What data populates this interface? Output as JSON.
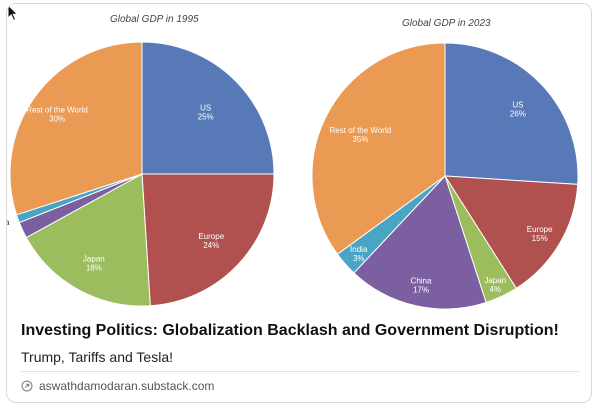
{
  "card": {
    "title": "Investing Politics: Globalization Backlash and Government Disruption!",
    "subtitle": "Trump, Tariffs and Tesla!",
    "source_domain": "aswathdamodaran.substack.com",
    "source_icon": "link-icon"
  },
  "chart_data": [
    {
      "type": "pie",
      "title": "Global GDP in 1995",
      "slices": [
        {
          "label": "US",
          "value": 25,
          "value_label": "25%",
          "color": "#5779b7"
        },
        {
          "label": "Europe",
          "value": 24,
          "value_label": "24%",
          "color": "#b0514f"
        },
        {
          "label": "Japan",
          "value": 18,
          "value_label": "18%",
          "color": "#9bbd5e"
        },
        {
          "label": "China",
          "value": 2,
          "value_label": "",
          "color": "#7b5fa0"
        },
        {
          "label": "India",
          "value": 1,
          "value_label": "",
          "color": "#4aa5c5"
        },
        {
          "label": "Rest of the World",
          "value": 30,
          "value_label": "30%",
          "color": "#ea9a52"
        }
      ],
      "visible_labels": [
        "US",
        "Europe",
        "Japan",
        "Rest of the World",
        "a"
      ]
    },
    {
      "type": "pie",
      "title": "Global GDP in 2023",
      "slices": [
        {
          "label": "US",
          "value": 26,
          "value_label": "26%",
          "color": "#5779b7"
        },
        {
          "label": "Europe",
          "value": 15,
          "value_label": "15%",
          "color": "#b0514f"
        },
        {
          "label": "Japan",
          "value": 4,
          "value_label": "4%",
          "color": "#9bbd5e"
        },
        {
          "label": "China",
          "value": 17,
          "value_label": "17%",
          "color": "#7b5fa0"
        },
        {
          "label": "India",
          "value": 3,
          "value_label": "3%",
          "color": "#4aa5c5"
        },
        {
          "label": "Rest of the World",
          "value": 35,
          "value_label": "35%",
          "color": "#ea9a52"
        }
      ]
    }
  ],
  "partial_label_1995": "a"
}
